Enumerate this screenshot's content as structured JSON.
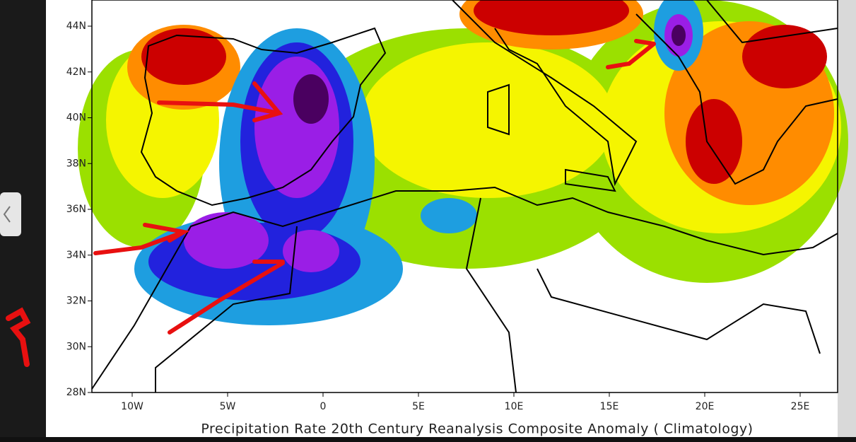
{
  "map": {
    "lat_labels": [
      "44N",
      "42N",
      "40N",
      "38N",
      "36N",
      "34N",
      "32N",
      "30N",
      "28N"
    ],
    "lon_labels": [
      "10W",
      "5W",
      "0",
      "5E",
      "10E",
      "15E",
      "20E",
      "25E"
    ],
    "caption": "Precipitation Rate 20th Century Reanalysis Composite Anomaly ( Climatology)"
  }
}
